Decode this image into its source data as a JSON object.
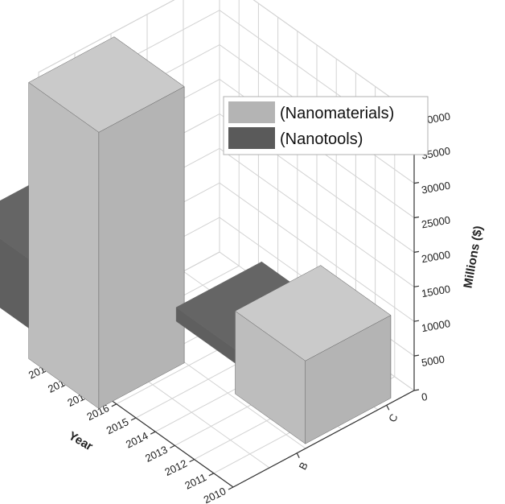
{
  "chart_data": {
    "type": "bar",
    "title": "",
    "categories": [
      "B",
      "C"
    ],
    "series": [
      {
        "name": "(Nanomaterials)",
        "values": [
          40000,
          12000
        ]
      },
      {
        "name": "(Nanotools)",
        "values": [
          10000,
          2000
        ]
      }
    ],
    "category_years": [
      2018,
      2012
    ],
    "xlabel": "",
    "ylabel": "Year",
    "zlabel": "Millions ($)",
    "year_ticks": [
      "2010",
      "2011",
      "2012",
      "2013",
      "2014",
      "2015",
      "2016",
      "2017",
      "2018",
      "2019"
    ],
    "z_ticks": [
      "0",
      "5000",
      "10000",
      "15000",
      "20000",
      "25000",
      "30000",
      "35000",
      "40000"
    ],
    "zlim": [
      0,
      40000
    ],
    "grid": true,
    "legend_position": "top-right",
    "colors": {
      "nanomaterials": "#b4b4b4",
      "nanotools": "#5a5a5a"
    }
  }
}
